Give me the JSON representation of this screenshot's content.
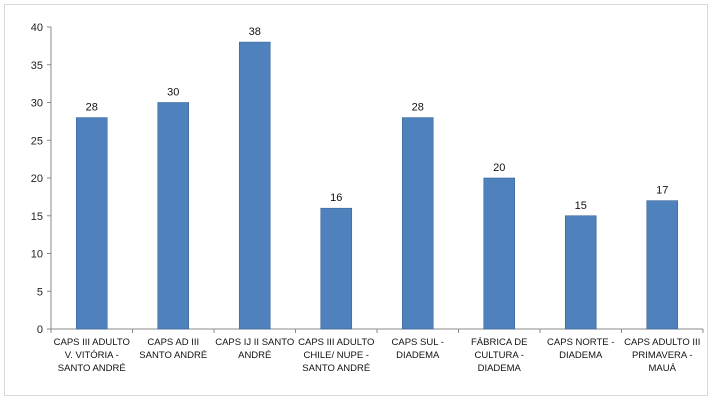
{
  "chart_data": {
    "type": "bar",
    "categories": [
      [
        "CAPS III ADULTO",
        "V. VITÓRIA -",
        "SANTO ANDRÉ"
      ],
      [
        "CAPS AD III",
        "SANTO ANDRÉ"
      ],
      [
        "CAPS IJ II SANTO",
        "ANDRÉ"
      ],
      [
        "CAPS III ADULTO",
        "CHILE/ NUPE -",
        "SANTO ANDRÉ"
      ],
      [
        "CAPS SUL -",
        "DIADEMA"
      ],
      [
        "FÁBRICA DE",
        "CULTURA -",
        "DIADEMA"
      ],
      [
        "CAPS NORTE -",
        "DIADEMA"
      ],
      [
        "CAPS ADULTO III",
        "PRIMAVERA -",
        "MAUÁ"
      ]
    ],
    "values": [
      28,
      30,
      38,
      16,
      28,
      20,
      15,
      17
    ],
    "title": "",
    "xlabel": "",
    "ylabel": "",
    "ylim": [
      0,
      40
    ],
    "yticks": [
      0,
      5,
      10,
      15,
      20,
      25,
      30,
      35,
      40
    ],
    "grid": false,
    "legend": "none",
    "bar_color": "#4f81bd",
    "bar_edge_color": "#3a6699",
    "axis_color": "#888888"
  }
}
